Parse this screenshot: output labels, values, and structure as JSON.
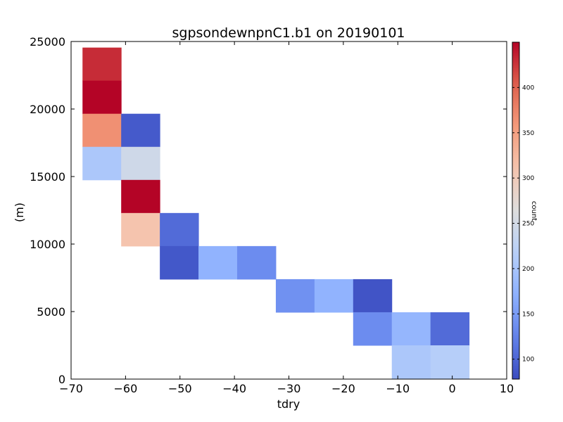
{
  "chart_data": {
    "type": "heatmap",
    "title": "sgpsondewnpnC1.b1 on 20190101",
    "xlabel": "tdry",
    "ylabel": "(m)",
    "colorbar_label": "count",
    "xlim": [
      -70,
      10
    ],
    "ylim": [
      0,
      25000
    ],
    "xticks": [
      -70,
      -60,
      -50,
      -40,
      -30,
      -20,
      -10,
      0,
      10
    ],
    "yticks": [
      0,
      5000,
      10000,
      15000,
      20000,
      25000
    ],
    "xtick_labels": [
      "−70",
      "−60",
      "−50",
      "−40",
      "−30",
      "−20",
      "−10",
      "0",
      "10"
    ],
    "ytick_labels": [
      "0",
      "5000",
      "10000",
      "15000",
      "20000",
      "25000"
    ],
    "colorbar_range": [
      78,
      450
    ],
    "colorbar_ticks": [
      100,
      150,
      200,
      250,
      300,
      350,
      400
    ],
    "colormap": "coolwarm",
    "grid": false,
    "cells": [
      {
        "x0": -67.9,
        "x1": -60.8,
        "y0": 22100,
        "y1": 24550,
        "count": 430
      },
      {
        "x0": -67.9,
        "x1": -60.8,
        "y0": 19650,
        "y1": 22100,
        "count": 450
      },
      {
        "x0": -67.9,
        "x1": -60.8,
        "y0": 17200,
        "y1": 19650,
        "count": 365
      },
      {
        "x0": -67.9,
        "x1": -60.8,
        "y0": 14750,
        "y1": 17200,
        "count": 205
      },
      {
        "x0": -60.8,
        "x1": -53.7,
        "y0": 17200,
        "y1": 19650,
        "count": 90
      },
      {
        "x0": -60.8,
        "x1": -53.7,
        "y0": 14750,
        "y1": 17200,
        "count": 245
      },
      {
        "x0": -60.8,
        "x1": -53.7,
        "y0": 12300,
        "y1": 14750,
        "count": 450
      },
      {
        "x0": -60.8,
        "x1": -53.7,
        "y0": 9850,
        "y1": 12300,
        "count": 310
      },
      {
        "x0": -53.7,
        "x1": -46.6,
        "y0": 9850,
        "y1": 12300,
        "count": 105
      },
      {
        "x0": -53.7,
        "x1": -46.6,
        "y0": 7400,
        "y1": 9850,
        "count": 88
      },
      {
        "x0": -46.6,
        "x1": -39.5,
        "y0": 7400,
        "y1": 9850,
        "count": 175
      },
      {
        "x0": -39.5,
        "x1": -32.4,
        "y0": 7400,
        "y1": 9850,
        "count": 135
      },
      {
        "x0": -32.4,
        "x1": -25.3,
        "y0": 4950,
        "y1": 7400,
        "count": 140
      },
      {
        "x0": -25.3,
        "x1": -18.2,
        "y0": 4950,
        "y1": 7400,
        "count": 175
      },
      {
        "x0": -18.2,
        "x1": -11.1,
        "y0": 4950,
        "y1": 7400,
        "count": 85
      },
      {
        "x0": -18.2,
        "x1": -11.1,
        "y0": 2500,
        "y1": 4950,
        "count": 135
      },
      {
        "x0": -11.1,
        "x1": -4.0,
        "y0": 2500,
        "y1": 4950,
        "count": 180
      },
      {
        "x0": -4.0,
        "x1": 3.1,
        "y0": 2500,
        "y1": 4950,
        "count": 105
      },
      {
        "x0": -11.1,
        "x1": -4.0,
        "y0": 50,
        "y1": 2500,
        "count": 205
      },
      {
        "x0": -4.0,
        "x1": 3.1,
        "y0": 50,
        "y1": 2500,
        "count": 215
      }
    ]
  }
}
